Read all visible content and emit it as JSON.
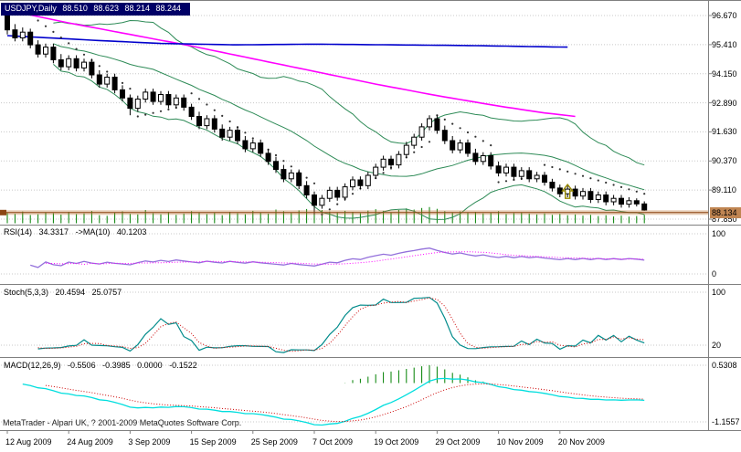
{
  "window": {
    "title_symbol": "USDJPY,Daily",
    "ohlc": {
      "open": "88.510",
      "high": "88.623",
      "low": "88.214",
      "close": "88.244"
    }
  },
  "panels": {
    "rsi": {
      "label": "RSI(14)",
      "value": "34.3317",
      "ma_label": "->MA(10)",
      "ma_value": "40.1203",
      "scale": [
        "100",
        "0"
      ]
    },
    "stoch": {
      "label": "Stoch(5,3,3)",
      "value1": "20.4594",
      "value2": "25.0757",
      "scale": [
        "100",
        "20"
      ]
    },
    "macd": {
      "label": "MACD(12,26,9)",
      "values": [
        "-0.5506",
        "-0.3985",
        "0.0000",
        "-0.1522"
      ],
      "scale": [
        "0.5308",
        "-1.1557"
      ]
    }
  },
  "price_scale": [
    "96.670",
    "95.410",
    "94.150",
    "92.890",
    "91.630",
    "90.370",
    "89.110",
    "87.850"
  ],
  "current_price": "88.134",
  "dates": [
    "12 Aug 2009",
    "24 Aug 2009",
    "3 Sep 2009",
    "15 Sep 2009",
    "25 Sep 2009",
    "7 Oct 2009",
    "19 Oct 2009",
    "29 Oct 2009",
    "10 Nov 2009",
    "20 Nov 2009"
  ],
  "footer": "MetaTrader - Alpari UK, ? 2001-2009 MetaQuotes Software Corp.",
  "colors": {
    "background": "#ffffff",
    "grid": "#c8c8c8",
    "separator": "#808080",
    "title_bg": "#000066",
    "bull_candle": "#ffffff",
    "bear_candle": "#000000",
    "candle_outline": "#000000",
    "bollinger": "#2e8b57",
    "ma_fast": "#ff00ff",
    "ma_slow": "#0000cc",
    "volume": "#008000",
    "psar": "#333333",
    "price_line": "#8b4513",
    "price_band": "#b8702a",
    "price_tag_bg": "#c08552",
    "rsi_line": "#9370db",
    "rsi_ma": "#ff00ff",
    "stoch_main": "#008b8b",
    "stoch_signal": "#cc0000",
    "macd_line": "#00dede",
    "macd_signal": "#cc0000",
    "macd_hist_pos": "#008000",
    "arrow": "#988900"
  },
  "chart_data": {
    "type": "candlestick",
    "symbol": "USDJPY",
    "timeframe": "Daily",
    "title": "USDJPY,Daily 88.510 88.623 88.214 88.244",
    "y_ticks": [
      96.67,
      95.41,
      94.15,
      92.89,
      91.63,
      90.37,
      89.11,
      87.85
    ],
    "x_tick_interval": 8,
    "x_tick_labels": [
      "12 Aug 2009",
      "24 Aug 2009",
      "3 Sep 2009",
      "15 Sep 2009",
      "25 Sep 2009",
      "7 Oct 2009",
      "19 Oct 2009",
      "29 Oct 2009",
      "10 Nov 2009",
      "20 Nov 2009"
    ],
    "candles": [
      [
        96.85,
        97.0,
        95.85,
        96.05
      ],
      [
        96.05,
        96.3,
        95.55,
        95.7
      ],
      [
        95.7,
        96.15,
        95.55,
        95.95
      ],
      [
        95.95,
        96.1,
        95.25,
        95.4
      ],
      [
        95.4,
        95.6,
        94.85,
        95.0
      ],
      [
        95.0,
        95.45,
        94.85,
        95.3
      ],
      [
        95.3,
        95.45,
        94.6,
        94.75
      ],
      [
        94.75,
        95.0,
        94.3,
        94.45
      ],
      [
        94.45,
        94.95,
        94.3,
        94.8
      ],
      [
        94.8,
        94.95,
        94.25,
        94.4
      ],
      [
        94.4,
        94.8,
        94.25,
        94.65
      ],
      [
        94.65,
        94.8,
        93.95,
        94.1
      ],
      [
        94.1,
        94.3,
        93.55,
        93.7
      ],
      [
        93.7,
        94.15,
        93.55,
        94.0
      ],
      [
        94.0,
        94.15,
        93.3,
        93.45
      ],
      [
        93.45,
        93.65,
        92.95,
        93.1
      ],
      [
        93.1,
        93.25,
        92.35,
        92.65
      ],
      [
        92.65,
        93.2,
        92.5,
        93.05
      ],
      [
        93.05,
        93.5,
        92.9,
        93.35
      ],
      [
        93.35,
        93.5,
        92.8,
        92.95
      ],
      [
        92.95,
        93.4,
        92.8,
        93.25
      ],
      [
        93.25,
        93.4,
        92.65,
        92.8
      ],
      [
        92.8,
        93.25,
        92.65,
        93.1
      ],
      [
        93.1,
        93.25,
        92.55,
        92.7
      ],
      [
        92.7,
        92.85,
        92.15,
        92.3
      ],
      [
        92.3,
        92.5,
        91.75,
        91.9
      ],
      [
        91.9,
        92.35,
        91.75,
        92.2
      ],
      [
        92.2,
        92.35,
        91.6,
        91.75
      ],
      [
        91.75,
        91.95,
        91.25,
        91.4
      ],
      [
        91.4,
        91.85,
        91.25,
        91.7
      ],
      [
        91.7,
        91.85,
        91.1,
        91.25
      ],
      [
        91.25,
        91.45,
        90.75,
        90.9
      ],
      [
        90.9,
        91.3,
        90.75,
        91.15
      ],
      [
        91.15,
        91.3,
        90.55,
        90.7
      ],
      [
        90.7,
        90.9,
        90.2,
        90.35
      ],
      [
        90.35,
        90.55,
        89.85,
        90.0
      ],
      [
        90.0,
        90.2,
        89.45,
        89.6
      ],
      [
        89.6,
        90.0,
        89.45,
        89.85
      ],
      [
        89.85,
        90.0,
        89.15,
        89.3
      ],
      [
        89.3,
        89.5,
        88.75,
        88.9
      ],
      [
        88.9,
        89.05,
        88.05,
        88.45
      ],
      [
        88.45,
        88.9,
        88.3,
        88.75
      ],
      [
        88.75,
        89.25,
        88.6,
        89.1
      ],
      [
        89.1,
        89.25,
        88.65,
        88.8
      ],
      [
        88.8,
        89.4,
        88.65,
        89.25
      ],
      [
        89.25,
        89.7,
        89.1,
        89.55
      ],
      [
        89.55,
        89.7,
        89.15,
        89.3
      ],
      [
        89.3,
        89.9,
        89.15,
        89.75
      ],
      [
        89.75,
        90.25,
        89.6,
        90.1
      ],
      [
        90.1,
        90.6,
        89.95,
        90.45
      ],
      [
        90.45,
        90.6,
        90.0,
        90.2
      ],
      [
        90.2,
        90.8,
        90.05,
        90.65
      ],
      [
        90.65,
        91.2,
        90.5,
        91.05
      ],
      [
        91.05,
        91.55,
        90.9,
        91.4
      ],
      [
        91.4,
        92.0,
        91.25,
        91.85
      ],
      [
        91.85,
        92.35,
        91.7,
        92.2
      ],
      [
        92.2,
        92.35,
        91.55,
        91.7
      ],
      [
        91.7,
        91.9,
        91.1,
        91.25
      ],
      [
        91.25,
        91.45,
        90.7,
        90.85
      ],
      [
        90.85,
        91.3,
        90.7,
        91.15
      ],
      [
        91.15,
        91.3,
        90.55,
        90.7
      ],
      [
        90.7,
        90.9,
        90.2,
        90.35
      ],
      [
        90.35,
        90.75,
        90.2,
        90.6
      ],
      [
        90.6,
        90.75,
        90.0,
        90.15
      ],
      [
        90.15,
        90.35,
        89.7,
        89.85
      ],
      [
        89.85,
        90.25,
        89.7,
        90.1
      ],
      [
        90.1,
        90.25,
        89.55,
        89.7
      ],
      [
        89.7,
        90.1,
        89.55,
        89.95
      ],
      [
        89.95,
        90.1,
        89.45,
        89.6
      ],
      [
        89.6,
        89.9,
        89.45,
        89.75
      ],
      [
        89.75,
        89.9,
        89.3,
        89.45
      ],
      [
        89.45,
        89.6,
        89.05,
        89.2
      ],
      [
        89.2,
        89.35,
        88.8,
        88.95
      ],
      [
        88.95,
        89.3,
        88.8,
        89.15
      ],
      [
        89.15,
        89.3,
        88.7,
        88.85
      ],
      [
        88.85,
        89.2,
        88.7,
        89.05
      ],
      [
        89.05,
        89.2,
        88.55,
        88.7
      ],
      [
        88.7,
        89.05,
        88.55,
        88.9
      ],
      [
        88.9,
        89.05,
        88.45,
        88.6
      ],
      [
        88.6,
        88.9,
        88.45,
        88.75
      ],
      [
        88.75,
        88.9,
        88.35,
        88.5
      ],
      [
        88.5,
        88.8,
        88.35,
        88.65
      ],
      [
        88.65,
        88.75,
        88.4,
        88.51
      ],
      [
        88.51,
        88.623,
        88.214,
        88.244
      ]
    ],
    "volumes": [
      52,
      47,
      58,
      41,
      45,
      55,
      50,
      43,
      57,
      46,
      49,
      61,
      40,
      37,
      53,
      59,
      47,
      44,
      66,
      50,
      45,
      56,
      42,
      48,
      60,
      54,
      46,
      52,
      40,
      57,
      50,
      45,
      62,
      55,
      48,
      68,
      60,
      52,
      64,
      71,
      83,
      66,
      58,
      55,
      62,
      57,
      50,
      63,
      70,
      62,
      55,
      66,
      74,
      68,
      76,
      81,
      72,
      60,
      55,
      59,
      52,
      57,
      49,
      54,
      60,
      46,
      51,
      55,
      48,
      44,
      49,
      42,
      47,
      40,
      44,
      38,
      42,
      36,
      40,
      34,
      38,
      33,
      36,
      42
    ],
    "overlays": {
      "bollinger": {
        "period": 20,
        "deviation": 2
      },
      "ma_fast_magenta": [
        [
          0,
          96.9
        ],
        [
          8,
          96.35
        ],
        [
          16,
          95.85
        ],
        [
          24,
          95.35
        ],
        [
          32,
          94.8
        ],
        [
          40,
          94.25
        ],
        [
          48,
          93.7
        ],
        [
          56,
          93.2
        ],
        [
          64,
          92.75
        ],
        [
          70,
          92.45
        ],
        [
          74,
          92.3
        ]
      ],
      "ma_slow_blue": [
        [
          0,
          95.8
        ],
        [
          10,
          95.62
        ],
        [
          20,
          95.46
        ],
        [
          30,
          95.4
        ],
        [
          40,
          95.43
        ],
        [
          50,
          95.4
        ],
        [
          60,
          95.37
        ],
        [
          73,
          95.3
        ]
      ],
      "psar_segments": [
        {
          "from": 3,
          "to": 16,
          "side": "above",
          "start": 96.7,
          "end": 93.5
        },
        {
          "from": 17,
          "to": 23,
          "side": "below",
          "start": 92.3,
          "end": 92.75
        },
        {
          "from": 24,
          "to": 40,
          "side": "above",
          "start": 93.3,
          "end": 89.4
        },
        {
          "from": 41,
          "to": 55,
          "side": "below",
          "start": 88.05,
          "end": 91.2
        },
        {
          "from": 56,
          "to": 63,
          "side": "above",
          "start": 92.35,
          "end": 91.05
        },
        {
          "from": 64,
          "to": 69,
          "side": "below",
          "start": 89.45,
          "end": 89.7
        },
        {
          "from": 70,
          "to": 83,
          "side": "above",
          "start": 90.2,
          "end": 88.95
        }
      ]
    },
    "annotations": [
      {
        "index": 73,
        "symbol": "up-arrow",
        "price_tip": 89.35,
        "price_base": 88.75
      }
    ],
    "indicators": {
      "rsi": {
        "period": 14,
        "ma_period": 10,
        "last_value": 34.3317,
        "last_ma": 40.1203,
        "range": [
          0,
          100
        ]
      },
      "stochastic": {
        "params": [
          5,
          3,
          3
        ],
        "last_k": 20.4594,
        "last_d": 25.0757,
        "range": [
          0,
          100
        ]
      },
      "macd": {
        "params": [
          12,
          26,
          9
        ],
        "last_values": [
          -0.5506,
          -0.3985,
          0.0,
          -0.1522
        ],
        "range": [
          -1.1557,
          0.5308
        ]
      }
    },
    "current_price_line": 88.134
  }
}
